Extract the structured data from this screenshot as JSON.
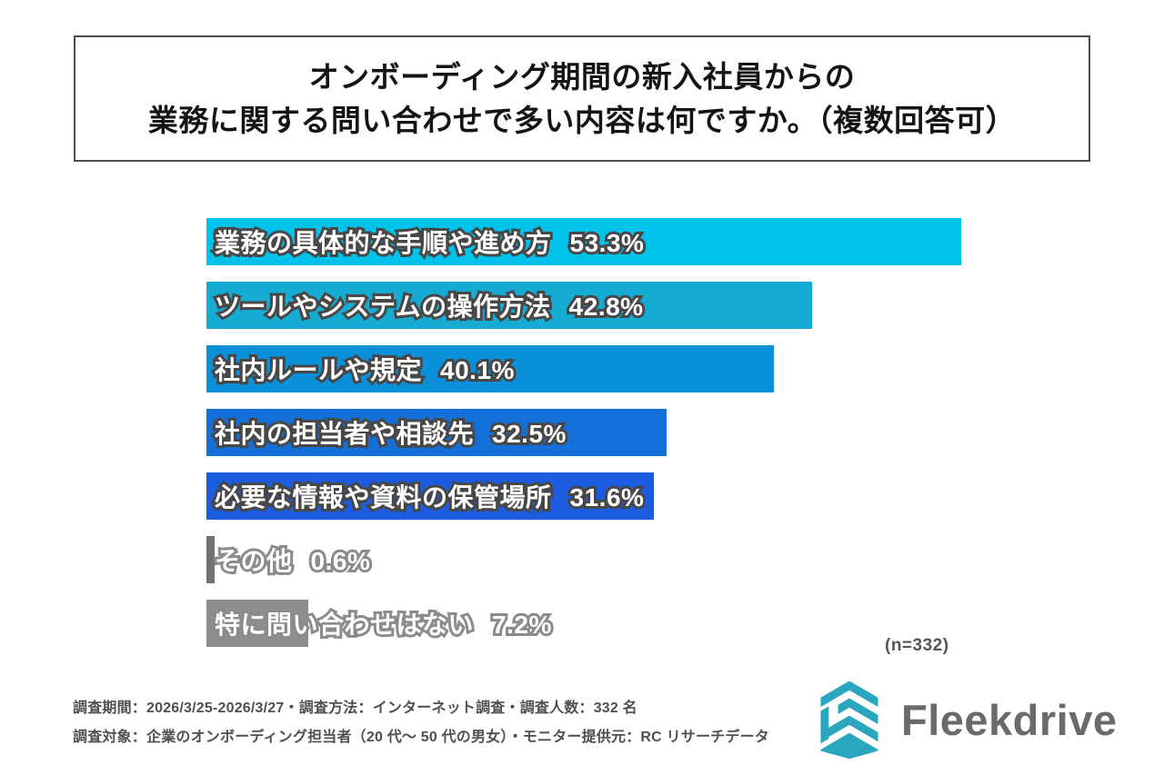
{
  "title": {
    "line1": "オンボーディング期間の新入社員からの",
    "line2": "業務に関する問い合わせで多い内容は何ですか。（複数回答可）"
  },
  "chart_data": {
    "type": "bar",
    "orientation": "horizontal",
    "unit": "%",
    "value_axis_max": 53.3,
    "grid": false,
    "legend": "none",
    "categories": [
      "業務の具体的な手順や進め方",
      "ツールやシステムの操作方法",
      "社内ルールや規定",
      "社内の担当者や相談先",
      "必要な情報や資料の保管場所",
      "その他",
      "特に問い合わせはない"
    ],
    "values": [
      53.3,
      42.8,
      40.1,
      32.5,
      31.6,
      0.6,
      7.2
    ],
    "items": [
      {
        "label": "業務の具体的な手順や進め方",
        "value": 53.3,
        "display": "53.3%",
        "color": "#00c2ea",
        "outline": "#474747"
      },
      {
        "label": "ツールやシステムの操作方法",
        "value": 42.8,
        "display": "42.8%",
        "color": "#16abd2",
        "outline": "#474747"
      },
      {
        "label": "社内ルールや規定",
        "value": 40.1,
        "display": "40.1%",
        "color": "#0990d8",
        "outline": "#474747"
      },
      {
        "label": "社内の担当者や相談先",
        "value": 32.5,
        "display": "32.5%",
        "color": "#1470d8",
        "outline": "#474747"
      },
      {
        "label": "必要な情報や資料の保管場所",
        "value": 31.6,
        "display": "31.6%",
        "color": "#1c5ce0",
        "outline": "#474747"
      },
      {
        "label": "その他",
        "value": 0.6,
        "display": "0.6%",
        "color": "#727272",
        "outline": "#8b8b8b"
      },
      {
        "label": "特に問い合わせはない",
        "value": 7.2,
        "display": "7.2%",
        "color": "#8e8e8e",
        "outline": "#8b8b8b"
      }
    ]
  },
  "sample_note": "(n=332)",
  "footer": {
    "line1": "調査期間：2026/3/25-2026/3/27・調査方法：インターネット調査・調査人数：332 名",
    "line2": "調査対象：企業のオンボーディング担当者（20 代～ 50 代の男女）・モニター提供元：RC リサーチデータ"
  },
  "logo": {
    "text": "Fleekdrive",
    "icon": "fleekdrive-hexagon-logo",
    "icon_color": "#2aa7bf",
    "text_color": "#6a6a6a"
  }
}
